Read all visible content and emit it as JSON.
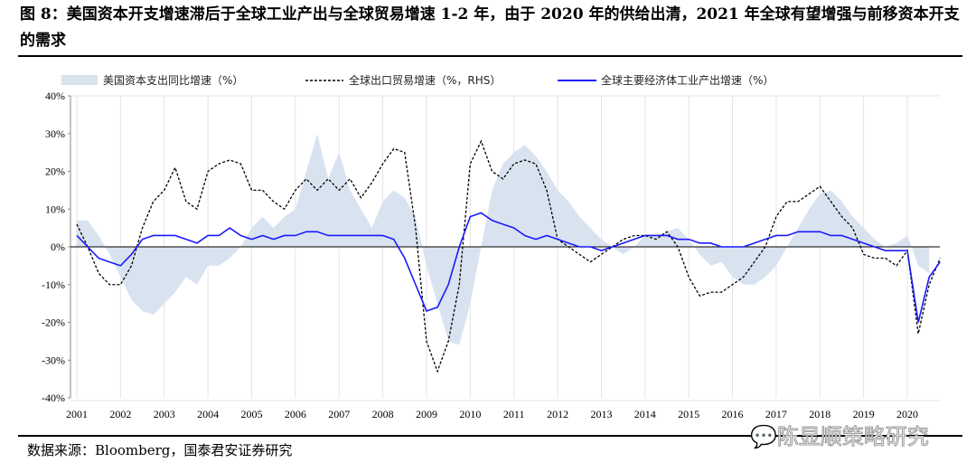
{
  "title": "图 8：美国资本开支增速滞后于全球工业产出与全球贸易增速 1-2 年，由于 2020 年的供给出清，2021 年全球有望增强与前移资本开支的需求",
  "source": "数据来源：Bloomberg，国泰君安证券研究",
  "watermark": "陈显顺策略研究",
  "chart_data": {
    "type": "line",
    "x_start": 2001.0,
    "x_step": 0.25,
    "xlabels": [
      "2001",
      "2002",
      "2003",
      "2004",
      "2005",
      "2006",
      "2007",
      "2008",
      "2009",
      "2010",
      "2011",
      "2012",
      "2013",
      "2014",
      "2015",
      "2016",
      "2017",
      "2018",
      "2019",
      "2020"
    ],
    "yticks": [
      "40%",
      "30%",
      "20%",
      "10%",
      "0%",
      "-10%",
      "-20%",
      "-30%",
      "-40%"
    ],
    "ylim": [
      -40,
      40
    ],
    "grid": "vertical",
    "legend_position": "top",
    "series": [
      {
        "name": "美国资本支出同比增速（%）",
        "style": "area",
        "color": "#d9e3f0",
        "values": [
          7,
          7,
          3,
          -2,
          -8,
          -14,
          -17,
          -18,
          -15,
          -12,
          -8,
          -10,
          -5,
          -5,
          -3,
          0,
          5,
          8,
          5,
          8,
          10,
          20,
          30,
          18,
          25,
          15,
          10,
          5,
          12,
          15,
          13,
          8,
          -5,
          -15,
          -25,
          -26,
          -15,
          0,
          15,
          22,
          25,
          27,
          24,
          20,
          15,
          12,
          8,
          5,
          2,
          0,
          -2,
          0,
          3,
          3,
          4,
          5,
          2,
          -2,
          -5,
          -4,
          -8,
          -10,
          -10,
          -8,
          -5,
          0,
          5,
          10,
          14,
          15,
          12,
          8,
          5,
          2,
          0,
          1,
          3,
          -5,
          -7
        ]
      },
      {
        "name": "全球出口贸易增速（%，RHS）",
        "style": "dashed",
        "color": "#000000",
        "values": [
          6,
          0,
          -7,
          -10,
          -10,
          -5,
          5,
          12,
          15,
          21,
          12,
          10,
          20,
          22,
          23,
          22,
          15,
          15,
          12,
          10,
          15,
          18,
          15,
          18,
          15,
          18,
          13,
          17,
          22,
          26,
          25,
          5,
          -25,
          -33,
          -25,
          -10,
          22,
          28,
          20,
          18,
          22,
          23,
          22,
          15,
          2,
          0,
          -2,
          -4,
          -2,
          0,
          2,
          3,
          3,
          2,
          4,
          0,
          -8,
          -13,
          -12,
          -12,
          -10,
          -8,
          -4,
          0,
          8,
          12,
          12,
          14,
          16,
          12,
          8,
          5,
          -2,
          -3,
          -3,
          -5,
          -1,
          -23,
          -10,
          -3
        ]
      },
      {
        "name": "全球主要经济体工业产出增速（%）",
        "style": "solid",
        "color": "#1a1aff",
        "values": [
          3,
          0,
          -3,
          -4,
          -5,
          -2,
          2,
          3,
          3,
          3,
          2,
          1,
          3,
          3,
          5,
          3,
          2,
          3,
          2,
          3,
          3,
          4,
          4,
          3,
          3,
          3,
          3,
          3,
          3,
          2,
          -3,
          -10,
          -17,
          -16,
          -10,
          0,
          8,
          9,
          7,
          6,
          5,
          3,
          2,
          3,
          2,
          1,
          0,
          0,
          -1,
          0,
          1,
          2,
          3,
          3,
          3,
          2,
          2,
          1,
          1,
          0,
          0,
          0,
          1,
          2,
          3,
          3,
          4,
          4,
          4,
          3,
          3,
          2,
          1,
          0,
          -1,
          -1,
          -1,
          -20,
          -8,
          -4
        ]
      }
    ]
  }
}
